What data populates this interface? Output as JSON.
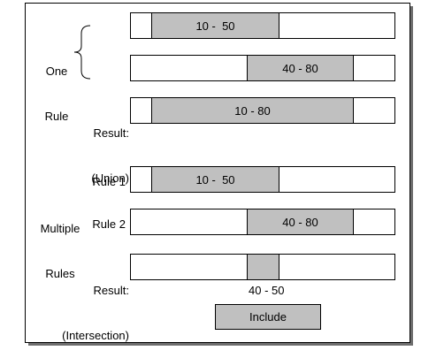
{
  "one_rule": {
    "label_line1": "One",
    "label_line2": "Rule",
    "bar1_range": "10 -  50",
    "bar2_range": "40 - 80"
  },
  "union": {
    "label_line1": "Result:",
    "label_line2": "(Union)",
    "range": "10 - 80"
  },
  "multiple_rules": {
    "label_line1": "Multiple",
    "label_line2": "Rules",
    "rule1_label": "Rule 1",
    "rule1_range": "10 -  50",
    "rule2_label": "Rule 2",
    "rule2_range": "40 - 80"
  },
  "intersection": {
    "label_line1": "Result:",
    "label_line2": "(Intersection)",
    "range": "40 - 50"
  },
  "include_button": "Include"
}
